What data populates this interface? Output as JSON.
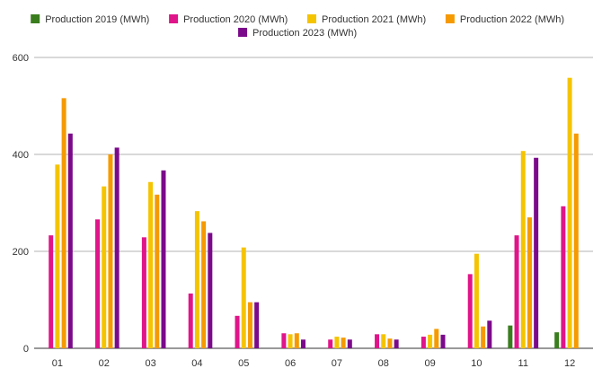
{
  "chart_data": {
    "type": "bar",
    "title": "",
    "xlabel": "",
    "ylabel": "",
    "ylim": [
      0,
      600
    ],
    "yticks": [
      0,
      200,
      400,
      600
    ],
    "grid": true,
    "legend_position": "top-center",
    "categories": [
      "01",
      "02",
      "03",
      "04",
      "05",
      "06",
      "07",
      "08",
      "09",
      "10",
      "11",
      "12"
    ],
    "series": [
      {
        "name": "Production 2019 (MWh)",
        "color": "#3a7d1e",
        "values": [
          null,
          null,
          null,
          null,
          null,
          null,
          null,
          null,
          null,
          null,
          47,
          33
        ]
      },
      {
        "name": "Production 2020 (MWh)",
        "color": "#e0158a",
        "values": [
          233,
          266,
          229,
          113,
          67,
          31,
          18,
          29,
          24,
          153,
          233,
          293
        ]
      },
      {
        "name": "Production 2021 (MWh)",
        "color": "#f5c400",
        "values": [
          379,
          334,
          343,
          283,
          208,
          29,
          24,
          29,
          28,
          195,
          407,
          558
        ]
      },
      {
        "name": "Production 2022 (MWh)",
        "color": "#f59a00",
        "values": [
          516,
          400,
          317,
          262,
          95,
          31,
          22,
          20,
          40,
          45,
          270,
          443
        ]
      },
      {
        "name": "Production 2023 (MWh)",
        "color": "#7b0a8a",
        "values": [
          443,
          414,
          367,
          238,
          95,
          18,
          18,
          18,
          28,
          57,
          393,
          null
        ]
      }
    ]
  }
}
